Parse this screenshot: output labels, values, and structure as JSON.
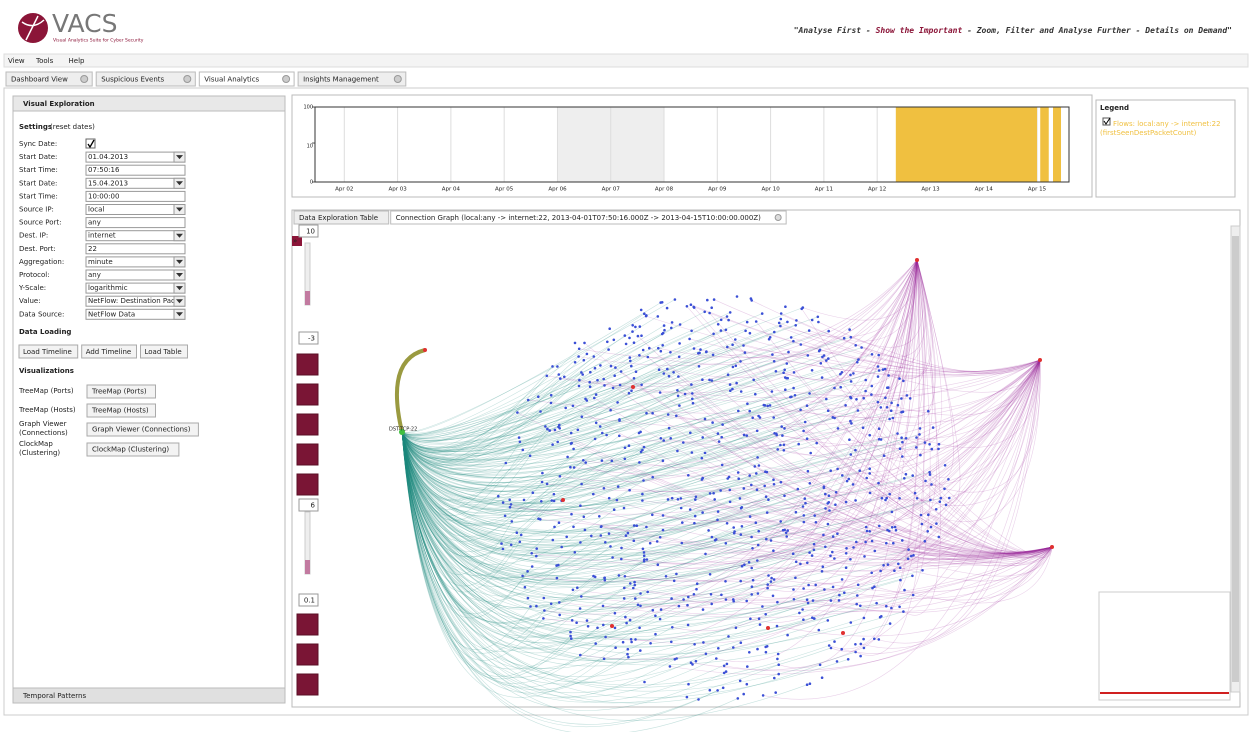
{
  "header": {
    "logo": "VACS",
    "subtitle": "Visual Analytics Suite for Cyber Security",
    "tagline": [
      "\"Analyse First - ",
      "Show the Important",
      " - Zoom, Filter and Analyse Further - Details on Demand\""
    ]
  },
  "menu": [
    "View",
    "Tools",
    "Help"
  ],
  "tabs": [
    "Dashboard View",
    "Suspicious Events",
    "Visual Analytics",
    "Insights Management"
  ],
  "active_tab": 2,
  "panel": {
    "title": "Visual Exploration",
    "settings_title": "Settings",
    "reset": "(reset dates)",
    "fields": [
      {
        "label": "Sync Date:",
        "checked": true
      },
      {
        "label": "Start Date:",
        "value": "01.04.2013",
        "kind": "select"
      },
      {
        "label": "Start Time:",
        "value": "07:50:16",
        "kind": "text"
      },
      {
        "label": "Start Date:",
        "value": "15.04.2013",
        "kind": "select"
      },
      {
        "label": "Start Time:",
        "value": "10:00:00",
        "kind": "text"
      },
      {
        "label": "Source IP:",
        "value": "local",
        "kind": "select"
      },
      {
        "label": "Source Port:",
        "value": "any",
        "kind": "text"
      },
      {
        "label": "Dest. IP:",
        "value": "internet",
        "kind": "select"
      },
      {
        "label": "Dest. Port:",
        "value": "22",
        "kind": "text"
      },
      {
        "label": "Aggregation:",
        "value": "minute",
        "kind": "select"
      },
      {
        "label": "Protocol:",
        "value": "any",
        "kind": "select"
      },
      {
        "label": "Y-Scale:",
        "value": "logarithmic",
        "kind": "select"
      },
      {
        "label": "Value:",
        "value": "NetFlow: Destination Packa",
        "kind": "select"
      },
      {
        "label": "Data Source:",
        "value": "NetFlow Data",
        "kind": "select"
      }
    ],
    "loading_title": "Data Loading",
    "loading_buttons": [
      "Load Timeline",
      "Add Timeline",
      "Load Table"
    ],
    "vis_title": "Visualizations",
    "vis_rows": [
      {
        "label": "TreeMap (Ports)",
        "button": "TreeMap (Ports)"
      },
      {
        "label": "TreeMap (Hosts)",
        "button": "TreeMap (Hosts)"
      },
      {
        "label": "Graph Viewer (Connections)",
        "button": "Graph Viewer (Connections)"
      },
      {
        "label": "ClockMap (Clustering)",
        "button": "ClockMap (Clustering)"
      }
    ],
    "footer": "Temporal Patterns"
  },
  "timeline": {
    "type": "bar",
    "yscale": "log",
    "ylim": [
      0,
      100
    ],
    "yticks": [
      0,
      10,
      100
    ],
    "xlim": [
      1.45,
      15.6
    ],
    "xticks": [
      {
        "value": 2,
        "label": "Apr 02"
      },
      {
        "value": 3,
        "label": "Apr 03"
      },
      {
        "value": 4,
        "label": "Apr 04"
      },
      {
        "value": 5,
        "label": "Apr 05"
      },
      {
        "value": 6,
        "label": "Apr 06"
      },
      {
        "value": 7,
        "label": "Apr 07"
      },
      {
        "value": 8,
        "label": "Apr 08"
      },
      {
        "value": 9,
        "label": "Apr 09"
      },
      {
        "value": 10,
        "label": "Apr 10"
      },
      {
        "value": 11,
        "label": "Apr 11"
      },
      {
        "value": 12,
        "label": "Apr 12"
      },
      {
        "value": 13,
        "label": "Apr 13"
      },
      {
        "value": 14,
        "label": "Apr 14"
      },
      {
        "value": 15,
        "label": "Apr 15"
      }
    ],
    "shaded": [
      6,
      8
    ],
    "color": "#f0c040",
    "bars": [
      {
        "start": 12.35,
        "end": 15.0,
        "value": 100
      },
      {
        "start": 15.06,
        "end": 15.22,
        "value": 100
      },
      {
        "start": 15.3,
        "end": 15.45,
        "value": 100
      }
    ]
  },
  "legend": {
    "title": "Legend",
    "entry": "Flows: local:any -> internet:22 (firstSeenDestPacketCount)",
    "checked": true
  },
  "subtabs": [
    "Data Exploration Table",
    "Connection Graph (local:any -> internet:22, 2013-04-01T07:50:16.000Z -> 2013-04-15T10:00:00.000Z)"
  ],
  "graph": {
    "controls": [
      "10",
      "-3",
      "6",
      "0.1"
    ],
    "hub_label": "DST-TCP:22"
  }
}
